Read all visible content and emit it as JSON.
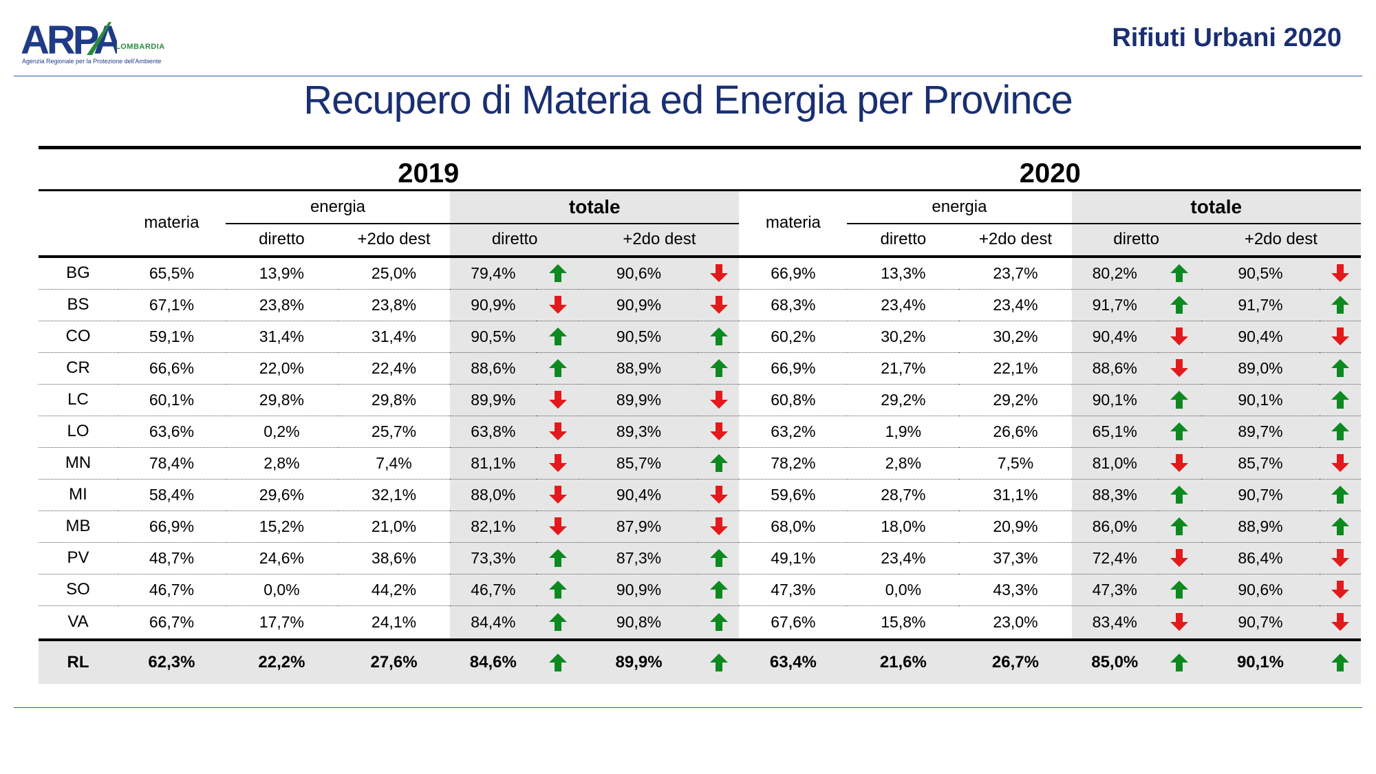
{
  "header": {
    "logo_text": "ARPA",
    "logo_region": "LOMBARDIA",
    "logo_agency": "Agenzia Regionale per la Protezione dell'Ambiente",
    "report_title": "Rifiuti Urbani 2020"
  },
  "page_title": "Recupero di Materia ed Energia per Province",
  "table": {
    "years": [
      "2019",
      "2020"
    ],
    "labels": {
      "materia": "materia",
      "energia": "energia",
      "totale": "totale",
      "diretto": "diretto",
      "dest": "+2do dest"
    },
    "colors": {
      "up": "#0d8a1f",
      "down": "#e3191b",
      "shade": "#e6e6e6",
      "title": "#1a2f72"
    },
    "rows": [
      {
        "prov": "BG",
        "y2019": {
          "materia": "65,5%",
          "en_diretto": "13,9%",
          "en_dest": "25,0%",
          "tot_diretto": "79,4%",
          "tot_diretto_trend": "up",
          "tot_dest": "90,6%",
          "tot_dest_trend": "down"
        },
        "y2020": {
          "materia": "66,9%",
          "en_diretto": "13,3%",
          "en_dest": "23,7%",
          "tot_diretto": "80,2%",
          "tot_diretto_trend": "up",
          "tot_dest": "90,5%",
          "tot_dest_trend": "down"
        }
      },
      {
        "prov": "BS",
        "y2019": {
          "materia": "67,1%",
          "en_diretto": "23,8%",
          "en_dest": "23,8%",
          "tot_diretto": "90,9%",
          "tot_diretto_trend": "down",
          "tot_dest": "90,9%",
          "tot_dest_trend": "down"
        },
        "y2020": {
          "materia": "68,3%",
          "en_diretto": "23,4%",
          "en_dest": "23,4%",
          "tot_diretto": "91,7%",
          "tot_diretto_trend": "up",
          "tot_dest": "91,7%",
          "tot_dest_trend": "up"
        }
      },
      {
        "prov": "CO",
        "y2019": {
          "materia": "59,1%",
          "en_diretto": "31,4%",
          "en_dest": "31,4%",
          "tot_diretto": "90,5%",
          "tot_diretto_trend": "up",
          "tot_dest": "90,5%",
          "tot_dest_trend": "up"
        },
        "y2020": {
          "materia": "60,2%",
          "en_diretto": "30,2%",
          "en_dest": "30,2%",
          "tot_diretto": "90,4%",
          "tot_diretto_trend": "down",
          "tot_dest": "90,4%",
          "tot_dest_trend": "down"
        }
      },
      {
        "prov": "CR",
        "y2019": {
          "materia": "66,6%",
          "en_diretto": "22,0%",
          "en_dest": "22,4%",
          "tot_diretto": "88,6%",
          "tot_diretto_trend": "up",
          "tot_dest": "88,9%",
          "tot_dest_trend": "up"
        },
        "y2020": {
          "materia": "66,9%",
          "en_diretto": "21,7%",
          "en_dest": "22,1%",
          "tot_diretto": "88,6%",
          "tot_diretto_trend": "down",
          "tot_dest": "89,0%",
          "tot_dest_trend": "up"
        }
      },
      {
        "prov": "LC",
        "y2019": {
          "materia": "60,1%",
          "en_diretto": "29,8%",
          "en_dest": "29,8%",
          "tot_diretto": "89,9%",
          "tot_diretto_trend": "down",
          "tot_dest": "89,9%",
          "tot_dest_trend": "down"
        },
        "y2020": {
          "materia": "60,8%",
          "en_diretto": "29,2%",
          "en_dest": "29,2%",
          "tot_diretto": "90,1%",
          "tot_diretto_trend": "up",
          "tot_dest": "90,1%",
          "tot_dest_trend": "up"
        }
      },
      {
        "prov": "LO",
        "y2019": {
          "materia": "63,6%",
          "en_diretto": "0,2%",
          "en_dest": "25,7%",
          "tot_diretto": "63,8%",
          "tot_diretto_trend": "down",
          "tot_dest": "89,3%",
          "tot_dest_trend": "down"
        },
        "y2020": {
          "materia": "63,2%",
          "en_diretto": "1,9%",
          "en_dest": "26,6%",
          "tot_diretto": "65,1%",
          "tot_diretto_trend": "up",
          "tot_dest": "89,7%",
          "tot_dest_trend": "up"
        }
      },
      {
        "prov": "MN",
        "y2019": {
          "materia": "78,4%",
          "en_diretto": "2,8%",
          "en_dest": "7,4%",
          "tot_diretto": "81,1%",
          "tot_diretto_trend": "down",
          "tot_dest": "85,7%",
          "tot_dest_trend": "up"
        },
        "y2020": {
          "materia": "78,2%",
          "en_diretto": "2,8%",
          "en_dest": "7,5%",
          "tot_diretto": "81,0%",
          "tot_diretto_trend": "down",
          "tot_dest": "85,7%",
          "tot_dest_trend": "down"
        }
      },
      {
        "prov": "MI",
        "y2019": {
          "materia": "58,4%",
          "en_diretto": "29,6%",
          "en_dest": "32,1%",
          "tot_diretto": "88,0%",
          "tot_diretto_trend": "down",
          "tot_dest": "90,4%",
          "tot_dest_trend": "down"
        },
        "y2020": {
          "materia": "59,6%",
          "en_diretto": "28,7%",
          "en_dest": "31,1%",
          "tot_diretto": "88,3%",
          "tot_diretto_trend": "up",
          "tot_dest": "90,7%",
          "tot_dest_trend": "up"
        }
      },
      {
        "prov": "MB",
        "y2019": {
          "materia": "66,9%",
          "en_diretto": "15,2%",
          "en_dest": "21,0%",
          "tot_diretto": "82,1%",
          "tot_diretto_trend": "down",
          "tot_dest": "87,9%",
          "tot_dest_trend": "down"
        },
        "y2020": {
          "materia": "68,0%",
          "en_diretto": "18,0%",
          "en_dest": "20,9%",
          "tot_diretto": "86,0%",
          "tot_diretto_trend": "up",
          "tot_dest": "88,9%",
          "tot_dest_trend": "up"
        }
      },
      {
        "prov": "PV",
        "y2019": {
          "materia": "48,7%",
          "en_diretto": "24,6%",
          "en_dest": "38,6%",
          "tot_diretto": "73,3%",
          "tot_diretto_trend": "up",
          "tot_dest": "87,3%",
          "tot_dest_trend": "up"
        },
        "y2020": {
          "materia": "49,1%",
          "en_diretto": "23,4%",
          "en_dest": "37,3%",
          "tot_diretto": "72,4%",
          "tot_diretto_trend": "down",
          "tot_dest": "86,4%",
          "tot_dest_trend": "down"
        }
      },
      {
        "prov": "SO",
        "y2019": {
          "materia": "46,7%",
          "en_diretto": "0,0%",
          "en_dest": "44,2%",
          "tot_diretto": "46,7%",
          "tot_diretto_trend": "up",
          "tot_dest": "90,9%",
          "tot_dest_trend": "up"
        },
        "y2020": {
          "materia": "47,3%",
          "en_diretto": "0,0%",
          "en_dest": "43,3%",
          "tot_diretto": "47,3%",
          "tot_diretto_trend": "up",
          "tot_dest": "90,6%",
          "tot_dest_trend": "down"
        }
      },
      {
        "prov": "VA",
        "y2019": {
          "materia": "66,7%",
          "en_diretto": "17,7%",
          "en_dest": "24,1%",
          "tot_diretto": "84,4%",
          "tot_diretto_trend": "up",
          "tot_dest": "90,8%",
          "tot_dest_trend": "up"
        },
        "y2020": {
          "materia": "67,6%",
          "en_diretto": "15,8%",
          "en_dest": "23,0%",
          "tot_diretto": "83,4%",
          "tot_diretto_trend": "down",
          "tot_dest": "90,7%",
          "tot_dest_trend": "down"
        }
      }
    ],
    "total_row": {
      "prov": "RL",
      "y2019": {
        "materia": "62,3%",
        "en_diretto": "22,2%",
        "en_dest": "27,6%",
        "tot_diretto": "84,6%",
        "tot_diretto_trend": "up",
        "tot_dest": "89,9%",
        "tot_dest_trend": "up"
      },
      "y2020": {
        "materia": "63,4%",
        "en_diretto": "21,6%",
        "en_dest": "26,7%",
        "tot_diretto": "85,0%",
        "tot_diretto_trend": "up",
        "tot_dest": "90,1%",
        "tot_dest_trend": "up"
      }
    }
  }
}
